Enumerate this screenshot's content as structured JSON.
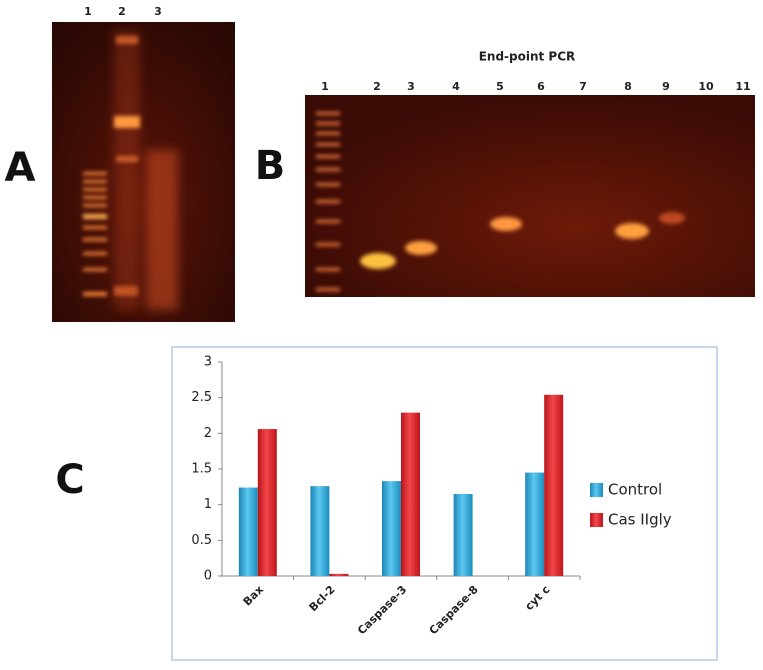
{
  "figure": {
    "panel_labels": [
      "A",
      "B",
      "C"
    ],
    "gel_a": {
      "lanes": [
        "1",
        "2",
        "3"
      ]
    },
    "gel_b": {
      "title": "End-point PCR",
      "lanes": [
        "1",
        "2",
        "3",
        "4",
        "5",
        "6",
        "7",
        "8",
        "9",
        "10",
        "11"
      ]
    }
  },
  "chart_data": {
    "type": "bar",
    "categories": [
      "Bax",
      "Bcl-2",
      "Caspase-3",
      "Caspase-8",
      "cyt c"
    ],
    "series": [
      {
        "name": "Control",
        "color": "#29a8dc",
        "values": [
          1.24,
          1.26,
          1.33,
          1.15,
          1.45
        ]
      },
      {
        "name": "Cas IIgly",
        "color": "#e3262c",
        "values": [
          2.06,
          0.03,
          2.29,
          null,
          2.54
        ]
      }
    ],
    "ylim": [
      0,
      3
    ],
    "yticks": [
      0,
      0.5,
      1,
      1.5,
      2,
      2.5,
      3
    ],
    "grid": false,
    "legend": "right"
  }
}
